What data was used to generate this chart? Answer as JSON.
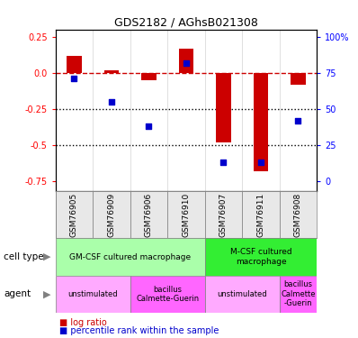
{
  "title": "GDS2182 / AGhsB021308",
  "samples": [
    "GSM76905",
    "GSM76909",
    "GSM76906",
    "GSM76910",
    "GSM76907",
    "GSM76911",
    "GSM76908"
  ],
  "log_ratio": [
    0.12,
    0.02,
    -0.05,
    0.17,
    -0.48,
    -0.68,
    -0.08
  ],
  "percentile_rank": [
    71,
    55,
    38,
    82,
    13,
    13,
    42
  ],
  "ylim": [
    -0.82,
    0.3
  ],
  "yticks_left": [
    0.25,
    0.0,
    -0.25,
    -0.5,
    -0.75
  ],
  "yticks_right": [
    100,
    75,
    50,
    25,
    0
  ],
  "bar_color": "#cc0000",
  "dot_color": "#0000cc",
  "cell_type_groups": [
    {
      "label": "GM-CSF cultured macrophage",
      "start": 0,
      "end": 3,
      "color": "#aaffaa"
    },
    {
      "label": "M-CSF cultured\nmacrophage",
      "start": 4,
      "end": 6,
      "color": "#33ee33"
    }
  ],
  "agent_groups": [
    {
      "label": "unstimulated",
      "start": 0,
      "end": 1,
      "color": "#ffaaff"
    },
    {
      "label": "bacillus\nCalmette-Guerin",
      "start": 2,
      "end": 3,
      "color": "#ff66ff"
    },
    {
      "label": "unstimulated",
      "start": 4,
      "end": 5,
      "color": "#ffaaff"
    },
    {
      "label": "bacillus\nCalmette\n-Guerin",
      "start": 6,
      "end": 6,
      "color": "#ff66ff"
    }
  ]
}
